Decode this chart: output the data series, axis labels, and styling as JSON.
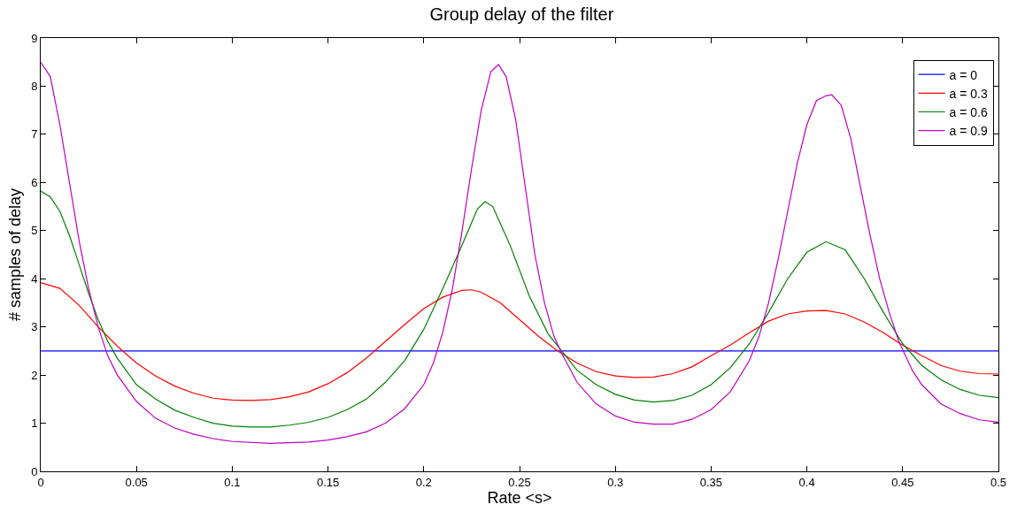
{
  "chart_data": {
    "type": "line",
    "title": "Group delay of the filter",
    "xlabel": "Rate <s>",
    "ylabel": "# samples of delay",
    "xlim": [
      0,
      0.5
    ],
    "xticks": [
      0,
      0.05,
      0.1,
      0.15,
      0.2,
      0.25,
      0.3,
      0.35,
      0.4,
      0.45,
      0.5
    ],
    "ylim": [
      0,
      9
    ],
    "yticks": [
      0,
      1,
      2,
      3,
      4,
      5,
      6,
      7,
      8,
      9
    ],
    "grid": false,
    "legend": "top right",
    "marker": "none",
    "line_style": "solid",
    "series": [
      {
        "name": "a = 0",
        "color": "#0000ff",
        "x": [
          0,
          0.5
        ],
        "values": [
          2.5,
          2.5
        ]
      },
      {
        "name": "a = 0.3",
        "color": "#ff0000",
        "x": [
          0,
          0.01,
          0.02,
          0.03,
          0.04,
          0.05,
          0.06,
          0.07,
          0.08,
          0.09,
          0.1,
          0.11,
          0.12,
          0.13,
          0.14,
          0.15,
          0.16,
          0.17,
          0.18,
          0.19,
          0.2,
          0.21,
          0.22,
          0.225,
          0.23,
          0.24,
          0.25,
          0.26,
          0.27,
          0.28,
          0.29,
          0.3,
          0.31,
          0.32,
          0.33,
          0.34,
          0.35,
          0.36,
          0.37,
          0.38,
          0.39,
          0.4,
          0.41,
          0.42,
          0.43,
          0.44,
          0.45,
          0.46,
          0.47,
          0.48,
          0.49,
          0.5
        ],
        "values": [
          3.92,
          3.8,
          3.45,
          3.0,
          2.6,
          2.25,
          1.98,
          1.77,
          1.62,
          1.52,
          1.48,
          1.47,
          1.49,
          1.55,
          1.65,
          1.82,
          2.05,
          2.35,
          2.7,
          3.05,
          3.38,
          3.62,
          3.76,
          3.77,
          3.72,
          3.5,
          3.15,
          2.8,
          2.5,
          2.25,
          2.07,
          1.98,
          1.95,
          1.96,
          2.03,
          2.17,
          2.4,
          2.62,
          2.88,
          3.12,
          3.27,
          3.33,
          3.34,
          3.27,
          3.1,
          2.88,
          2.62,
          2.4,
          2.2,
          2.08,
          2.03,
          2.02
        ]
      },
      {
        "name": "a = 0.6",
        "color": "#008000",
        "x": [
          0,
          0.005,
          0.01,
          0.015,
          0.02,
          0.025,
          0.03,
          0.035,
          0.04,
          0.05,
          0.06,
          0.07,
          0.08,
          0.09,
          0.1,
          0.11,
          0.12,
          0.13,
          0.14,
          0.15,
          0.16,
          0.17,
          0.18,
          0.19,
          0.2,
          0.21,
          0.22,
          0.228,
          0.232,
          0.236,
          0.245,
          0.255,
          0.265,
          0.272,
          0.28,
          0.29,
          0.3,
          0.31,
          0.32,
          0.33,
          0.34,
          0.35,
          0.36,
          0.37,
          0.38,
          0.39,
          0.4,
          0.41,
          0.42,
          0.43,
          0.44,
          0.45,
          0.46,
          0.47,
          0.48,
          0.49,
          0.5
        ],
        "values": [
          5.82,
          5.7,
          5.4,
          4.9,
          4.3,
          3.7,
          3.15,
          2.7,
          2.35,
          1.8,
          1.5,
          1.27,
          1.12,
          1.0,
          0.94,
          0.92,
          0.92,
          0.96,
          1.02,
          1.12,
          1.28,
          1.5,
          1.85,
          2.3,
          2.95,
          3.8,
          4.7,
          5.45,
          5.6,
          5.5,
          4.7,
          3.65,
          2.85,
          2.5,
          2.1,
          1.8,
          1.6,
          1.48,
          1.44,
          1.47,
          1.58,
          1.8,
          2.15,
          2.65,
          3.3,
          4.0,
          4.55,
          4.77,
          4.6,
          4.0,
          3.3,
          2.65,
          2.2,
          1.9,
          1.7,
          1.58,
          1.53
        ]
      },
      {
        "name": "a = 0.9",
        "color": "#bf00bf",
        "x": [
          0,
          0.005,
          0.01,
          0.015,
          0.02,
          0.025,
          0.03,
          0.035,
          0.04,
          0.05,
          0.06,
          0.07,
          0.08,
          0.09,
          0.1,
          0.12,
          0.14,
          0.15,
          0.16,
          0.17,
          0.18,
          0.19,
          0.2,
          0.205,
          0.21,
          0.215,
          0.22,
          0.225,
          0.23,
          0.235,
          0.239,
          0.243,
          0.248,
          0.253,
          0.258,
          0.263,
          0.268,
          0.272,
          0.28,
          0.29,
          0.3,
          0.31,
          0.32,
          0.33,
          0.34,
          0.35,
          0.36,
          0.37,
          0.375,
          0.38,
          0.385,
          0.39,
          0.395,
          0.4,
          0.405,
          0.41,
          0.413,
          0.418,
          0.423,
          0.428,
          0.433,
          0.438,
          0.443,
          0.448,
          0.455,
          0.46,
          0.47,
          0.48,
          0.49,
          0.5
        ],
        "values": [
          8.5,
          8.2,
          7.2,
          6.0,
          4.8,
          3.8,
          3.0,
          2.4,
          2.0,
          1.45,
          1.1,
          0.9,
          0.77,
          0.68,
          0.62,
          0.58,
          0.61,
          0.65,
          0.72,
          0.82,
          1.0,
          1.3,
          1.8,
          2.25,
          2.9,
          3.8,
          5.0,
          6.3,
          7.5,
          8.3,
          8.45,
          8.2,
          7.3,
          5.9,
          4.5,
          3.5,
          2.8,
          2.45,
          1.85,
          1.4,
          1.15,
          1.02,
          0.98,
          0.98,
          1.08,
          1.28,
          1.65,
          2.3,
          2.8,
          3.5,
          4.4,
          5.4,
          6.4,
          7.2,
          7.7,
          7.8,
          7.82,
          7.6,
          6.9,
          5.9,
          4.9,
          4.0,
          3.3,
          2.7,
          2.1,
          1.8,
          1.4,
          1.2,
          1.07,
          1.02
        ]
      }
    ]
  }
}
